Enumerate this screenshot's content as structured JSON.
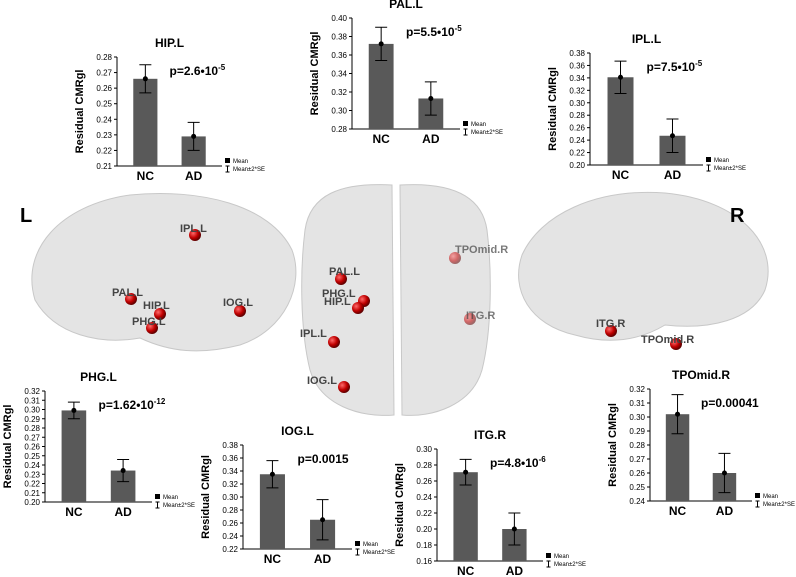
{
  "chart_data": [
    {
      "type": "bar",
      "title": "HIP.L",
      "ylabel": "Residual CMRgl",
      "categories": [
        "NC",
        "AD"
      ],
      "values": [
        0.266,
        0.229
      ],
      "errors": [
        0.009,
        0.009
      ],
      "color": "#595959",
      "ylim": [
        0.21,
        0.28
      ],
      "yticks": [
        0.21,
        0.22,
        0.23,
        0.24,
        0.25,
        0.26,
        0.27,
        0.28
      ],
      "annotation": {
        "text": "p=2.6•10",
        "superscript": "-5"
      },
      "legend": {
        "mean": "Mean",
        "error": "Mean±2*SE"
      }
    },
    {
      "type": "bar",
      "title": "PAL.L",
      "ylabel": "Residual CMRgl",
      "categories": [
        "NC",
        "AD"
      ],
      "values": [
        0.372,
        0.313
      ],
      "errors": [
        0.018,
        0.018
      ],
      "color": "#595959",
      "ylim": [
        0.28,
        0.4
      ],
      "yticks": [
        0.28,
        {
          "value": 0.3,
          "label": "0.30"
        },
        0.32,
        0.34,
        0.36,
        0.38,
        {
          "value": 0.4,
          "label": "0.40"
        }
      ],
      "annotation": {
        "text": "p=5.5•10",
        "superscript": "-5"
      },
      "legend": {
        "mean": "Mean",
        "error": "Mean±2*SE"
      }
    },
    {
      "type": "bar",
      "title": "IPL.L",
      "ylabel": "Residual CMRgl",
      "categories": [
        "NC",
        "AD"
      ],
      "values": [
        0.341,
        0.247
      ],
      "errors": [
        0.026,
        0.027
      ],
      "color": "#595959",
      "ylim": [
        0.2,
        0.38
      ],
      "yticks": [
        {
          "value": 0.2,
          "label": "0.20"
        },
        0.22,
        0.24,
        0.26,
        0.28,
        {
          "value": 0.3,
          "label": "0.30"
        },
        0.32,
        0.34,
        0.36,
        0.38
      ],
      "annotation": {
        "text": "p=7.5•10",
        "superscript": "-5"
      },
      "legend": {
        "mean": "Mean",
        "error": "Mean±2*SE"
      }
    },
    {
      "type": "bar",
      "title": "PHG.L",
      "ylabel": "Residual CMRgl",
      "categories": [
        "NC",
        "AD"
      ],
      "values": [
        0.299,
        0.234
      ],
      "errors": [
        0.009,
        0.012
      ],
      "color": "#595959",
      "ylim": [
        0.2,
        0.32
      ],
      "yticks": [
        {
          "value": 0.2,
          "label": "0.20"
        },
        0.21,
        0.22,
        0.23,
        0.24,
        0.25,
        0.26,
        0.27,
        0.28,
        0.29,
        {
          "value": 0.3,
          "label": "0.30"
        },
        0.31,
        0.32
      ],
      "annotation": {
        "text": "p=1.62•10",
        "superscript": "-12"
      },
      "legend": {
        "mean": "Mean",
        "error": "Mean±2*SE"
      }
    },
    {
      "type": "bar",
      "title": "IOG.L",
      "ylabel": "Residual CMRgl",
      "categories": [
        "NC",
        "AD"
      ],
      "values": [
        0.335,
        0.265
      ],
      "errors": [
        0.021,
        0.031
      ],
      "color": "#595959",
      "ylim": [
        0.22,
        0.38
      ],
      "yticks": [
        0.22,
        0.24,
        0.26,
        0.28,
        {
          "value": 0.3,
          "label": "0.30"
        },
        0.32,
        0.34,
        0.36,
        0.38
      ],
      "annotation": {
        "text": "p=0.0015"
      },
      "legend": {
        "mean": "Mean",
        "error": "Mean±2*SE"
      }
    },
    {
      "type": "bar",
      "title": "ITG.R",
      "ylabel": "Residual CMRgl",
      "categories": [
        "NC",
        "AD"
      ],
      "values": [
        0.271,
        0.2
      ],
      "errors": [
        0.016,
        0.02
      ],
      "color": "#595959",
      "ylim": [
        0.16,
        0.3
      ],
      "yticks": [
        0.16,
        0.18,
        {
          "value": 0.2,
          "label": "0.20"
        },
        0.22,
        0.24,
        0.26,
        0.28,
        {
          "value": 0.3,
          "label": "0.30"
        }
      ],
      "annotation": {
        "text": "p=4.8•10",
        "superscript": "-6"
      },
      "legend": {
        "mean": "Mean",
        "error": "Mean±2*SE"
      }
    },
    {
      "type": "bar",
      "title": "TPOmid.R",
      "ylabel": "Residual CMRgl",
      "categories": [
        "NC",
        "AD"
      ],
      "values": [
        0.302,
        0.26
      ],
      "errors": [
        0.014,
        0.014
      ],
      "color": "#595959",
      "ylim": [
        0.24,
        0.32
      ],
      "yticks": [
        0.24,
        0.25,
        0.26,
        0.27,
        0.28,
        0.29,
        {
          "value": 0.3,
          "label": "0.30"
        },
        0.31,
        0.32
      ],
      "annotation": {
        "text": "p=0.00041"
      },
      "legend": {
        "mean": "Mean",
        "error": "Mean±2*SE"
      }
    }
  ],
  "brain": {
    "sides": [
      "L",
      "R"
    ],
    "nodes": [
      "IPL.L",
      "PAL.L",
      "HIP.L",
      "PHG.L",
      "IOG.L",
      "PAL.L",
      "PHG.L",
      "HIP.L",
      "IPL.L",
      "IOG.L",
      "TPOmid.R",
      "ITG.R",
      "ITG.R",
      "TPOmid.R"
    ]
  }
}
